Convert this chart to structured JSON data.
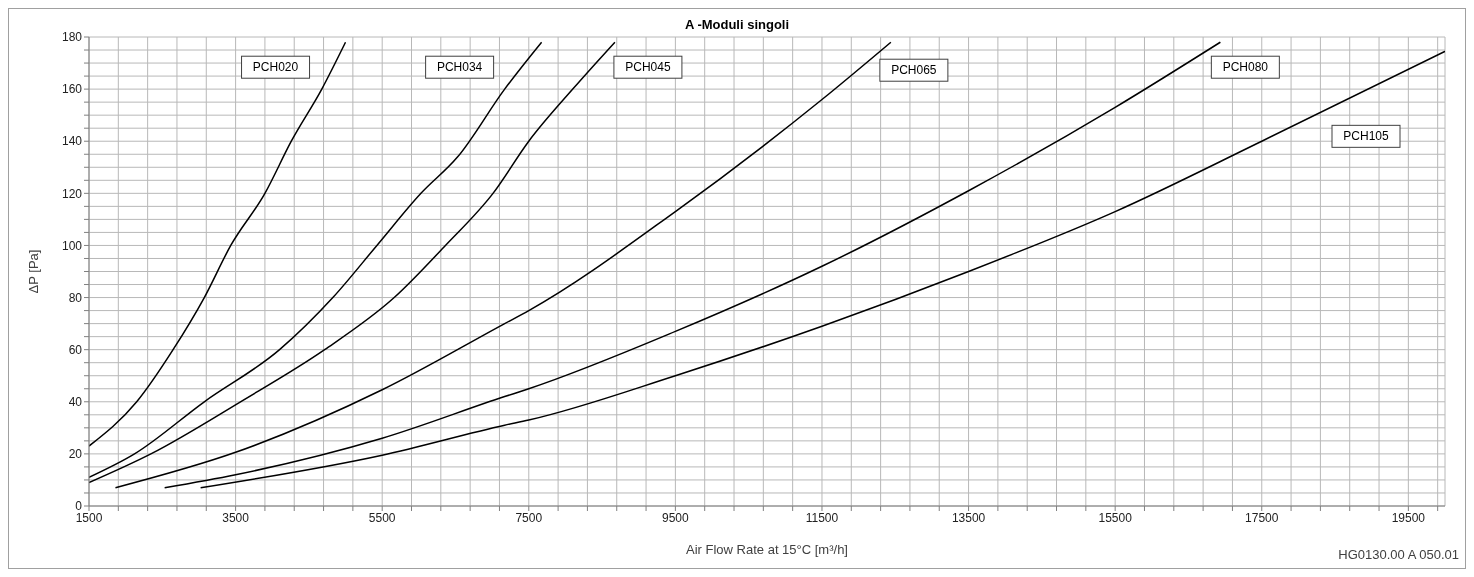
{
  "chart_data": {
    "type": "line",
    "title": "A -Moduli singoli",
    "xlabel": "Air Flow Rate at 15°C [m³/h]",
    "ylabel": "ΔP [Pa]",
    "annotations": [
      "HG0130.00 A 050.01"
    ],
    "xlim": [
      1500,
      20000
    ],
    "ylim": [
      0,
      180
    ],
    "xticks": [
      1500,
      {
        "value": 1900,
        "label": null
      },
      {
        "value": 2300,
        "label": null
      },
      {
        "value": 2700,
        "label": null
      },
      {
        "value": 3100,
        "label": null
      },
      3500,
      {
        "value": 3900,
        "label": null
      },
      {
        "value": 4300,
        "label": null
      },
      {
        "value": 4700,
        "label": null
      },
      {
        "value": 5100,
        "label": null
      },
      5500,
      {
        "value": 5900,
        "label": null
      },
      {
        "value": 6300,
        "label": null
      },
      {
        "value": 6700,
        "label": null
      },
      {
        "value": 7100,
        "label": null
      },
      7500,
      {
        "value": 7900,
        "label": null
      },
      {
        "value": 8300,
        "label": null
      },
      {
        "value": 8700,
        "label": null
      },
      {
        "value": 9100,
        "label": null
      },
      9500,
      {
        "value": 9900,
        "label": null
      },
      {
        "value": 10300,
        "label": null
      },
      {
        "value": 10700,
        "label": null
      },
      {
        "value": 11100,
        "label": null
      },
      11500,
      {
        "value": 11900,
        "label": null
      },
      {
        "value": 12300,
        "label": null
      },
      {
        "value": 12700,
        "label": null
      },
      {
        "value": 13100,
        "label": null
      },
      13500,
      {
        "value": 13900,
        "label": null
      },
      {
        "value": 14300,
        "label": null
      },
      {
        "value": 14700,
        "label": null
      },
      {
        "value": 15100,
        "label": null
      },
      15500,
      {
        "value": 15900,
        "label": null
      },
      {
        "value": 16300,
        "label": null
      },
      {
        "value": 16700,
        "label": null
      },
      {
        "value": 17100,
        "label": null
      },
      17500,
      {
        "value": 17900,
        "label": null
      },
      {
        "value": 18300,
        "label": null
      },
      {
        "value": 18700,
        "label": null
      },
      {
        "value": 19100,
        "label": null
      },
      19500,
      {
        "value": 19900,
        "label": null
      }
    ],
    "yticks": [
      0,
      {
        "value": 5,
        "label": null
      },
      {
        "value": 10,
        "label": null
      },
      {
        "value": 15,
        "label": null
      },
      20,
      {
        "value": 25,
        "label": null
      },
      {
        "value": 30,
        "label": null
      },
      {
        "value": 35,
        "label": null
      },
      40,
      {
        "value": 45,
        "label": null
      },
      {
        "value": 50,
        "label": null
      },
      {
        "value": 55,
        "label": null
      },
      60,
      {
        "value": 65,
        "label": null
      },
      {
        "value": 70,
        "label": null
      },
      {
        "value": 75,
        "label": null
      },
      80,
      {
        "value": 85,
        "label": null
      },
      {
        "value": 90,
        "label": null
      },
      {
        "value": 95,
        "label": null
      },
      100,
      {
        "value": 105,
        "label": null
      },
      {
        "value": 110,
        "label": null
      },
      {
        "value": 115,
        "label": null
      },
      120,
      {
        "value": 125,
        "label": null
      },
      {
        "value": 130,
        "label": null
      },
      {
        "value": 135,
        "label": null
      },
      140,
      {
        "value": 145,
        "label": null
      },
      {
        "value": 150,
        "label": null
      },
      {
        "value": 155,
        "label": null
      },
      160,
      {
        "value": 165,
        "label": null
      },
      {
        "value": 170,
        "label": null
      },
      {
        "value": 175,
        "label": null
      },
      180
    ],
    "grid": true,
    "marker": "none",
    "line_style": "solid",
    "series": [
      {
        "name": "PCH020",
        "color": "#000000",
        "x": [
          1500,
          2151,
          2647,
          3073,
          3434,
          3900,
          4260,
          4676,
          5000
        ],
        "values": [
          23,
          40,
          60,
          80,
          100,
          120,
          140,
          160,
          178
        ]
      },
      {
        "name": "PCH034",
        "color": "#000000",
        "x": [
          1500,
          2121,
          3073,
          4100,
          4827,
          5428,
          6029,
          6530,
          7171,
          7675
        ],
        "values": [
          11,
          20,
          40,
          60,
          80,
          100,
          120,
          134,
          160,
          178
        ]
      },
      {
        "name": "PCH045",
        "color": "#000000",
        "x": [
          1500,
          2344,
          3567,
          4715,
          5664,
          6363,
          7012,
          7500,
          8100,
          8675
        ],
        "values": [
          9,
          20,
          40,
          60,
          80,
          100,
          120,
          140,
          160,
          178
        ]
      },
      {
        "name": "PCH065",
        "color": "#000000",
        "x": [
          1861,
          3500,
          5500,
          7171,
          7500,
          9500,
          11500,
          12440
        ],
        "values": [
          7,
          20.6,
          44.6,
          70,
          75,
          113,
          156,
          178
        ]
      },
      {
        "name": "PCH080",
        "color": "#000000",
        "x": [
          2532,
          3500,
          5500,
          7171,
          7500,
          9500,
          11500,
          13500,
          15500,
          16935
        ],
        "values": [
          7,
          12,
          26,
          42,
          45,
          67,
          92,
          121,
          153,
          178
        ]
      },
      {
        "name": "PCH105",
        "color": "#000000",
        "x": [
          3023,
          5500,
          7171,
          7500,
          9500,
          11500,
          13500,
          15500,
          17500,
          20000
        ],
        "values": [
          7,
          19.5,
          31,
          33,
          50,
          69,
          90,
          113,
          140,
          174.5
        ]
      }
    ]
  }
}
